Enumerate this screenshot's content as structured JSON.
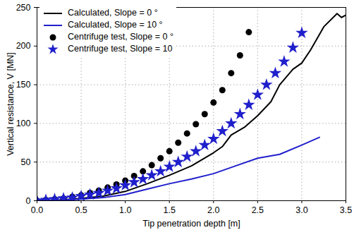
{
  "chart_data": {
    "type": "line",
    "x_label": "Tip penetration depth [m]",
    "y_label": "Vertical resistance, V [MN]",
    "xlim": [
      0,
      3.5
    ],
    "ylim": [
      0,
      250
    ],
    "xticks": [
      {
        "value": 0,
        "label": "0.0"
      },
      0.5,
      {
        "value": 1,
        "label": "1.0"
      },
      1.5,
      {
        "value": 2,
        "label": "2.0"
      },
      2.5,
      {
        "value": 3,
        "label": "3.0"
      },
      3.5
    ],
    "yticks": [
      0,
      50,
      100,
      150,
      200,
      250
    ],
    "grid": true,
    "legend": "upper left",
    "series": [
      {
        "name": "Calculated, Slope = 0 °",
        "type": "line",
        "line_style": "solid",
        "color": "#000000",
        "x": [
          0,
          0.25,
          0.5,
          0.75,
          1.0,
          1.25,
          1.5,
          1.75,
          2.0,
          2.1,
          2.2,
          2.35,
          2.5,
          2.65,
          2.75,
          2.9,
          3.0,
          3.1,
          3.25,
          3.4,
          3.45,
          3.5
        ],
        "values": [
          0,
          1,
          3,
          6,
          12,
          22,
          33,
          45,
          62,
          70,
          85,
          95,
          110,
          128,
          150,
          170,
          178,
          195,
          225,
          242,
          237,
          240
        ]
      },
      {
        "name": "Calculated, Slope = 10 °",
        "type": "line",
        "line_style": "solid",
        "color": "#1f1fcc",
        "x": [
          0,
          0.25,
          0.5,
          0.75,
          1.0,
          1.25,
          1.5,
          1.75,
          2.0,
          2.25,
          2.5,
          2.75,
          3.0,
          3.2
        ],
        "values": [
          0,
          1,
          2,
          4,
          8,
          15,
          22,
          28,
          35,
          45,
          55,
          60,
          72,
          82
        ]
      },
      {
        "name": "Centrifuge test, Slope = 0 °",
        "type": "scatter",
        "marker": "circle",
        "color": "#000000",
        "x": [
          0,
          0.1,
          0.2,
          0.3,
          0.4,
          0.5,
          0.6,
          0.7,
          0.8,
          0.9,
          1.0,
          1.1,
          1.2,
          1.3,
          1.4,
          1.5,
          1.6,
          1.7,
          1.8,
          1.9,
          2.0,
          2.1,
          2.2,
          2.3,
          2.4
        ],
        "values": [
          0,
          1,
          2,
          3,
          5,
          7,
          10,
          13,
          17,
          21,
          26,
          32,
          38,
          46,
          55,
          64,
          75,
          87,
          99,
          112,
          127,
          143,
          165,
          188,
          218
        ]
      },
      {
        "name": "Centrifuge test, Slope = 10",
        "type": "scatter",
        "marker": "star",
        "color": "#1f1fcc",
        "x": [
          0,
          0.1,
          0.2,
          0.3,
          0.4,
          0.5,
          0.6,
          0.7,
          0.8,
          0.9,
          1.0,
          1.1,
          1.2,
          1.3,
          1.4,
          1.5,
          1.6,
          1.7,
          1.8,
          1.9,
          2.0,
          2.1,
          2.2,
          2.3,
          2.4,
          2.5,
          2.6,
          2.7,
          2.8,
          2.9,
          3.0
        ],
        "values": [
          0,
          1,
          2,
          3,
          4,
          6,
          8,
          10,
          13,
          16,
          20,
          24,
          28,
          33,
          38,
          44,
          50,
          57,
          64,
          72,
          80,
          90,
          100,
          112,
          124,
          137,
          150,
          165,
          180,
          198,
          217
        ]
      }
    ]
  }
}
